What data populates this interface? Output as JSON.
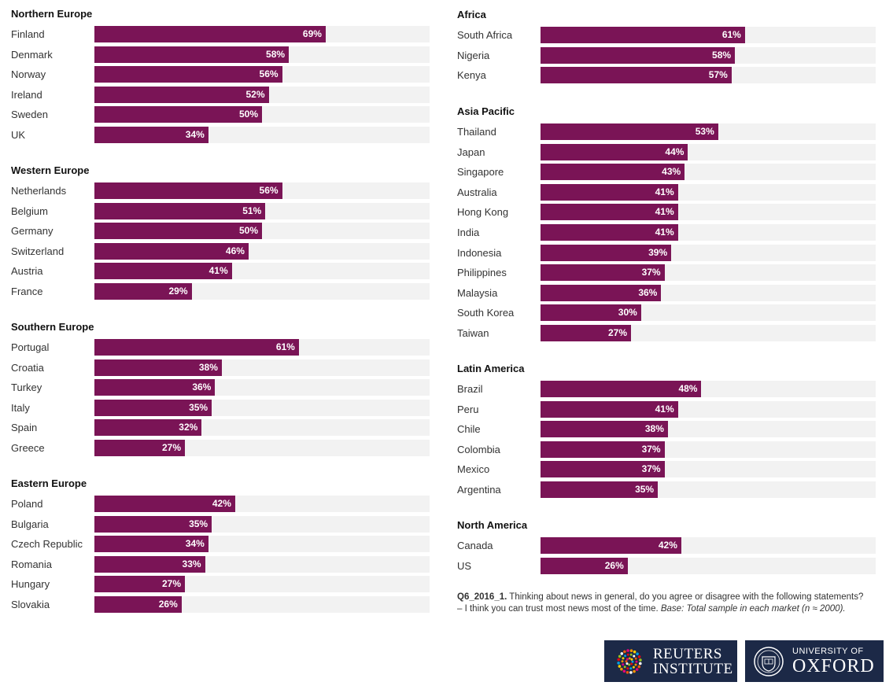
{
  "chart_data": {
    "type": "bar",
    "orientation": "horizontal",
    "title": "",
    "xlabel": "",
    "ylabel": "",
    "xlim": [
      0,
      100
    ],
    "value_suffix": "%",
    "colors": {
      "bar": "#7a1456",
      "track": "#f2f2f2"
    },
    "groups": [
      {
        "name": "Northern Europe",
        "categories": [
          "Finland",
          "Denmark",
          "Norway",
          "Ireland",
          "Sweden",
          "UK"
        ],
        "values": [
          69,
          58,
          56,
          52,
          50,
          34
        ]
      },
      {
        "name": "Western Europe",
        "categories": [
          "Netherlands",
          "Belgium",
          "Germany",
          "Switzerland",
          "Austria",
          "France"
        ],
        "values": [
          56,
          51,
          50,
          46,
          41,
          29
        ]
      },
      {
        "name": "Southern Europe",
        "categories": [
          "Portugal",
          "Croatia",
          "Turkey",
          "Italy",
          "Spain",
          "Greece"
        ],
        "values": [
          61,
          38,
          36,
          35,
          32,
          27
        ]
      },
      {
        "name": "Eastern Europe",
        "categories": [
          "Poland",
          "Bulgaria",
          "Czech Republic",
          "Romania",
          "Hungary",
          "Slovakia"
        ],
        "values": [
          42,
          35,
          34,
          33,
          27,
          26
        ]
      },
      {
        "name": "Africa",
        "categories": [
          "South Africa",
          "Nigeria",
          "Kenya"
        ],
        "values": [
          61,
          58,
          57
        ]
      },
      {
        "name": "Asia Pacific",
        "categories": [
          "Thailand",
          "Japan",
          "Singapore",
          "Australia",
          "Hong Kong",
          "India",
          "Indonesia",
          "Philippines",
          "Malaysia",
          "South Korea",
          "Taiwan"
        ],
        "values": [
          53,
          44,
          43,
          41,
          41,
          41,
          39,
          37,
          36,
          30,
          27
        ]
      },
      {
        "name": "Latin America",
        "categories": [
          "Brazil",
          "Peru",
          "Chile",
          "Colombia",
          "Mexico",
          "Argentina"
        ],
        "values": [
          48,
          41,
          38,
          37,
          37,
          35
        ]
      },
      {
        "name": "North America",
        "categories": [
          "Canada",
          "US"
        ],
        "values": [
          42,
          26
        ]
      }
    ]
  },
  "footnote": {
    "question_id": "Q6_2016_1.",
    "text": " Thinking about news in general, do you agree or disagree with the following statements? – I think you can trust most news most of the time. ",
    "base": "Base: Total sample in each market (n ≈ 2000)."
  },
  "logos": {
    "reuters_line1": "REUTERS",
    "reuters_line2": "INSTITUTE",
    "oxford_line1": "UNIVERSITY OF",
    "oxford_line2": "OXFORD"
  }
}
